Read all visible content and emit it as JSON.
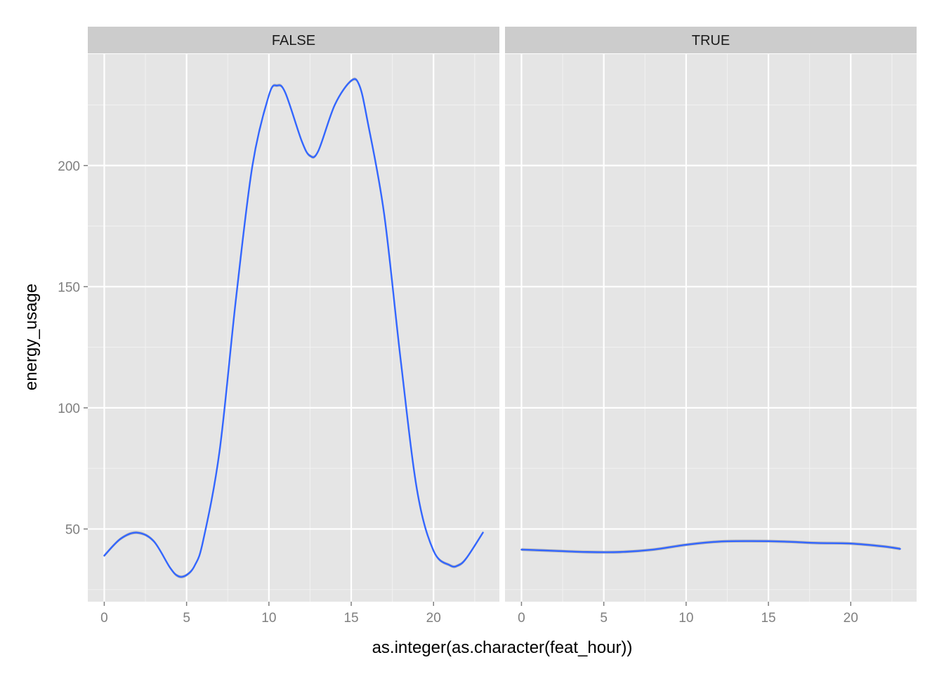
{
  "chart_data": {
    "type": "line",
    "xlabel": "as.integer(as.character(feat_hour))",
    "ylabel": "energy_usage",
    "xlim": [
      -1,
      24
    ],
    "ylim": [
      20,
      246
    ],
    "x_ticks": [
      0,
      5,
      10,
      15,
      20
    ],
    "x_tick_labels": [
      "0",
      "5",
      "10",
      "15",
      "20"
    ],
    "y_ticks": [
      50,
      100,
      150,
      200
    ],
    "y_tick_labels": [
      "50",
      "100",
      "150",
      "200"
    ],
    "x_minor": [
      2.5,
      7.5,
      12.5,
      17.5,
      22.5
    ],
    "y_minor": [
      25,
      75,
      125,
      175,
      225
    ],
    "grid": true,
    "line_color": "#3366ff",
    "ribbon_color": "#999999",
    "panel_color": "#e5e5e5",
    "strip_color": "#cccccc",
    "facets": [
      {
        "label": "FALSE",
        "x": [
          0,
          1,
          2,
          3,
          4,
          4.5,
          5,
          5.5,
          6,
          7,
          8,
          9,
          10,
          10.5,
          11,
          12,
          12.5,
          13,
          14,
          15,
          15.5,
          16,
          17,
          18,
          19,
          20,
          21,
          21.5,
          22,
          23
        ],
        "y": [
          39,
          46,
          48.5,
          45,
          34,
          30.5,
          31,
          35,
          45,
          82,
          145,
          200,
          229,
          233,
          230,
          210,
          204,
          206,
          225,
          235,
          233,
          218,
          180,
          120,
          66,
          41,
          35,
          35,
          38,
          48.5
        ]
      },
      {
        "label": "TRUE",
        "x": [
          0,
          2,
          4,
          6,
          8,
          10,
          12,
          14,
          16,
          18,
          20,
          22,
          23
        ],
        "y": [
          41.5,
          41,
          40.5,
          40.5,
          41.5,
          43.5,
          44.8,
          45,
          44.8,
          44.2,
          44,
          42.8,
          41.8
        ]
      }
    ]
  }
}
